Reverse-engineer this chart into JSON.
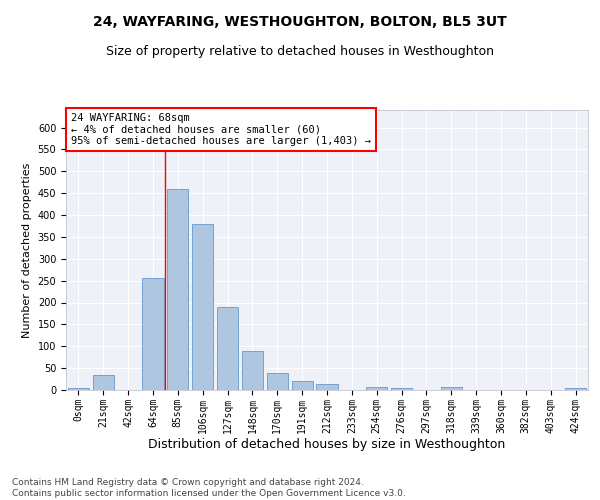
{
  "title": "24, WAYFARING, WESTHOUGHTON, BOLTON, BL5 3UT",
  "subtitle": "Size of property relative to detached houses in Westhoughton",
  "xlabel": "Distribution of detached houses by size in Westhoughton",
  "ylabel": "Number of detached properties",
  "bar_color": "#aec6df",
  "bar_edge_color": "#6699cc",
  "background_color": "#eef2f8",
  "grid_color": "#ffffff",
  "categories": [
    "0sqm",
    "21sqm",
    "42sqm",
    "64sqm",
    "85sqm",
    "106sqm",
    "127sqm",
    "148sqm",
    "170sqm",
    "191sqm",
    "212sqm",
    "233sqm",
    "254sqm",
    "276sqm",
    "297sqm",
    "318sqm",
    "339sqm",
    "360sqm",
    "382sqm",
    "403sqm",
    "424sqm"
  ],
  "values": [
    5,
    35,
    0,
    255,
    460,
    380,
    190,
    90,
    38,
    20,
    13,
    0,
    8,
    5,
    0,
    6,
    0,
    0,
    0,
    0,
    5
  ],
  "ylim": [
    0,
    640
  ],
  "yticks": [
    0,
    50,
    100,
    150,
    200,
    250,
    300,
    350,
    400,
    450,
    500,
    550,
    600
  ],
  "property_label": "24 WAYFARING: 68sqm",
  "annotation_line1": "← 4% of detached houses are smaller (60)",
  "annotation_line2": "95% of semi-detached houses are larger (1,403) →",
  "vline_x": 3.5,
  "footer_line1": "Contains HM Land Registry data © Crown copyright and database right 2024.",
  "footer_line2": "Contains public sector information licensed under the Open Government Licence v3.0.",
  "title_fontsize": 10,
  "subtitle_fontsize": 9,
  "xlabel_fontsize": 9,
  "ylabel_fontsize": 8,
  "tick_fontsize": 7,
  "annotation_fontsize": 7.5,
  "footer_fontsize": 6.5
}
